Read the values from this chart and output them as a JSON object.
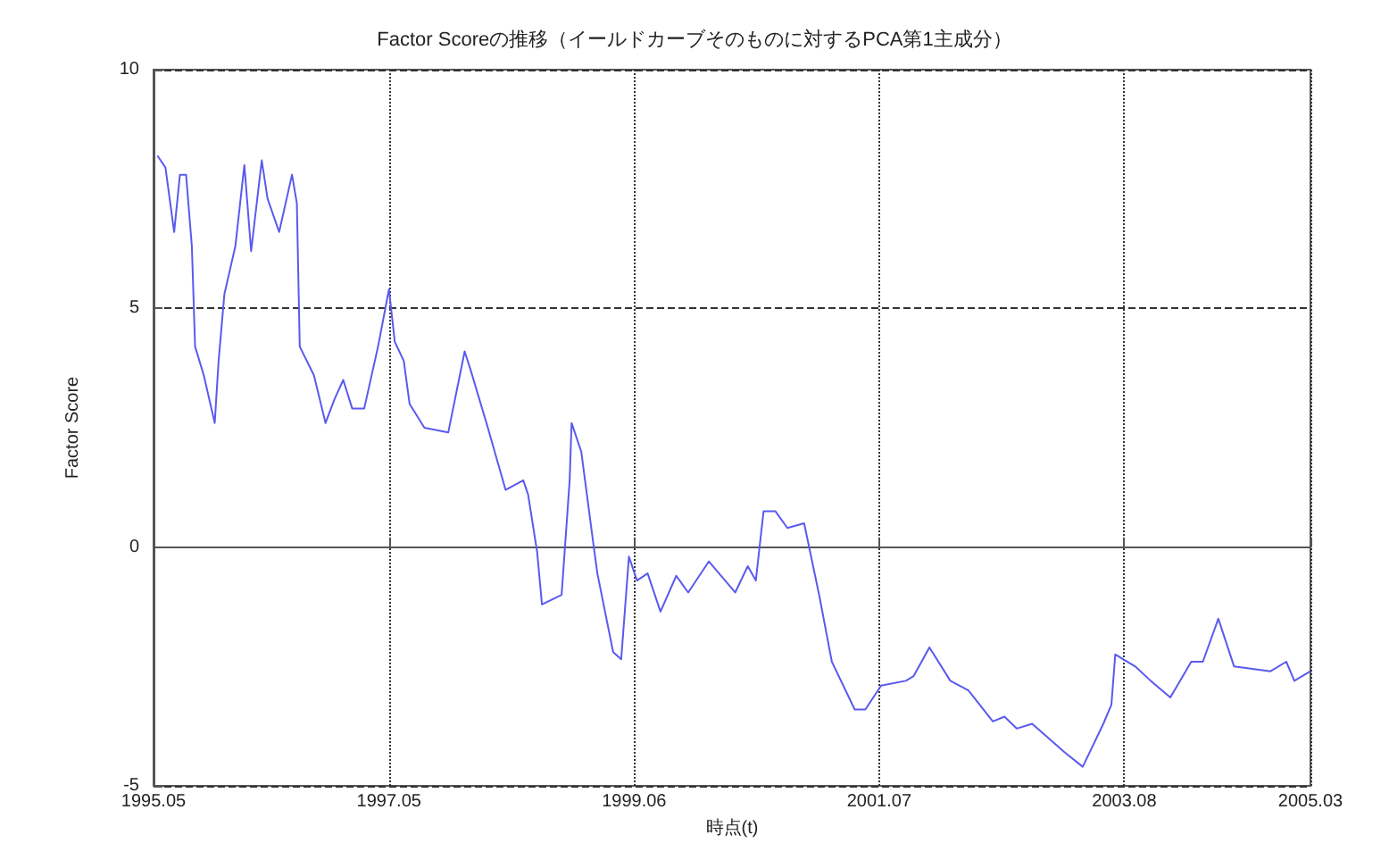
{
  "chart_data": {
    "type": "line",
    "title": "Factor Scoreの推移（イールドカーブそのものに対するPCA第1主成分）",
    "xlabel": "時点(t)",
    "ylabel": "Factor Score",
    "x": [
      "1995-05-13",
      "1995-06-07",
      "1995-07-04",
      "1995-07-22",
      "1995-08-10",
      "1995-08-28",
      "1995-09-07",
      "1995-10-04",
      "1995-11-07",
      "1995-11-19",
      "1995-12-07",
      "1996-01-10",
      "1996-02-07",
      "1996-02-28",
      "1996-04-01",
      "1996-04-19",
      "1996-05-25",
      "1996-07-04",
      "1996-07-19",
      "1996-07-28",
      "1996-09-10",
      "1996-10-16",
      "1996-11-13",
      "1996-12-10",
      "1997-01-07",
      "1997-02-13",
      "1997-03-28",
      "1997-05-01",
      "1997-05-19",
      "1997-06-16",
      "1997-07-04",
      "1997-08-19",
      "1997-11-01",
      "1997-12-22",
      "1998-01-10",
      "1998-03-04",
      "1998-04-28",
      "1998-06-22",
      "1998-07-07",
      "1998-08-04",
      "1998-08-19",
      "1998-10-19",
      "1998-11-13",
      "1998-11-19",
      "1998-12-19",
      "1999-01-25",
      "1999-02-07",
      "1999-03-28",
      "1999-04-22",
      "1999-05-16",
      "1999-06-10",
      "1999-07-13",
      "1999-08-22",
      "1999-10-10",
      "1999-11-16",
      "2000-01-19",
      "2000-04-10",
      "2000-05-19",
      "2000-06-13",
      "2000-07-07",
      "2000-08-13",
      "2000-09-19",
      "2000-11-10",
      "2000-12-28",
      "2001-02-04",
      "2001-04-16",
      "2001-05-19",
      "2001-07-07",
      "2001-09-22",
      "2001-10-16",
      "2001-12-04",
      "2002-02-07",
      "2002-04-04",
      "2002-06-19",
      "2002-07-25",
      "2002-09-01",
      "2002-10-19",
      "2003-01-28",
      "2003-03-25",
      "2003-05-28",
      "2003-06-22",
      "2003-07-04",
      "2003-09-04",
      "2003-10-22",
      "2003-12-22",
      "2004-02-25",
      "2004-04-01",
      "2004-05-19",
      "2004-07-07",
      "2004-10-28",
      "2004-12-16",
      "2005-01-10",
      "2005-03-01"
    ],
    "series": [
      {
        "color": "#5a5aee",
        "values": [
          8.2,
          7.95,
          6.6,
          7.8,
          7.8,
          6.3,
          4.2,
          3.6,
          2.6,
          3.9,
          5.3,
          6.3,
          8.0,
          6.2,
          8.1,
          7.3,
          6.6,
          7.8,
          7.2,
          4.2,
          3.6,
          2.6,
          3.1,
          3.5,
          2.9,
          2.9,
          4.2,
          5.4,
          4.3,
          3.9,
          3.0,
          2.5,
          2.4,
          4.1,
          3.7,
          2.5,
          1.2,
          1.4,
          1.1,
          -0.1,
          -1.2,
          -1.0,
          1.4,
          2.6,
          2.0,
          0.1,
          -0.55,
          -2.2,
          -2.35,
          -0.2,
          -0.7,
          -0.55,
          -1.35,
          -0.6,
          -0.95,
          -0.3,
          -0.95,
          -0.4,
          -0.7,
          0.75,
          0.75,
          0.4,
          0.5,
          -1.05,
          -2.4,
          -3.4,
          -3.4,
          -2.9,
          -2.8,
          -2.7,
          -2.1,
          -2.8,
          -3.0,
          -3.65,
          -3.55,
          -3.8,
          -3.7,
          -4.3,
          -4.6,
          -3.7,
          -3.3,
          -2.25,
          -2.5,
          -2.8,
          -3.15,
          -2.4,
          -2.4,
          -1.5,
          -2.5,
          -2.6,
          -2.4,
          -2.8,
          -2.6
        ]
      }
    ],
    "xlim": [
      "1995-05",
      "2005-03"
    ],
    "xticks": [
      {
        "value": "1995-05",
        "label": "1995.05"
      },
      {
        "value": "1997-05",
        "label": "1997.05"
      },
      {
        "value": "1999-06",
        "label": "1999.06"
      },
      {
        "value": "2001-07",
        "label": "2001.07"
      },
      {
        "value": "2003-08",
        "label": "2003.08"
      },
      {
        "value": "2005-03",
        "label": "2005.03"
      }
    ],
    "ylim": [
      -5,
      10
    ],
    "yticks": [
      -5,
      0,
      5,
      10
    ],
    "grid": true,
    "line_style": "solid",
    "marker": "none"
  }
}
